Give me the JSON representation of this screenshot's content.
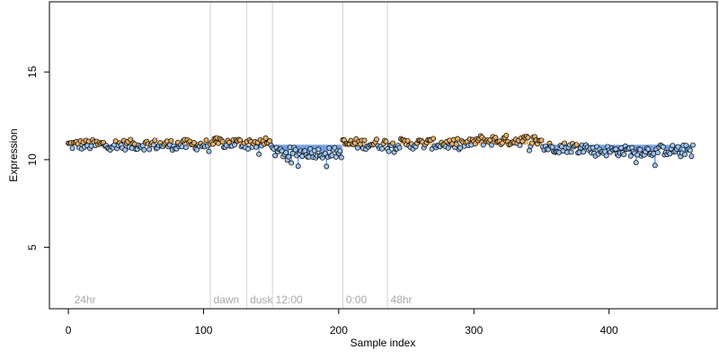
{
  "chart_data": {
    "type": "scatter",
    "title": "",
    "xlabel": "Sample index",
    "ylabel": "Expression",
    "xlim": [
      -14,
      480
    ],
    "ylim": [
      1.5,
      19
    ],
    "xticks": [
      0,
      100,
      200,
      300,
      400
    ],
    "yticks": [
      5,
      10,
      15
    ],
    "baseline": 10.85,
    "grid": false,
    "legend": "none",
    "colors": {
      "point_edge": "#000000",
      "point_above": "#e8b068",
      "point_below": "#9cc4f0",
      "bar_above": "#e8b068",
      "bar_below": "#6a98dd",
      "vline": "#d3d3d3",
      "annotation": "#a8a8a8"
    },
    "vlines": [
      105,
      132,
      151,
      203,
      236
    ],
    "annotations": [
      {
        "x": 3,
        "text": "24hr"
      },
      {
        "x": 106,
        "text": "dawn"
      },
      {
        "x": 133,
        "text": "dusk"
      },
      {
        "x": 152,
        "text": "12:00"
      },
      {
        "x": 204,
        "text": "0:00"
      },
      {
        "x": 237,
        "text": "48hr"
      }
    ],
    "segments": [
      {
        "x0": 0,
        "x1": 104,
        "level": 10.85
      },
      {
        "x0": 105,
        "x1": 151,
        "level": 10.95
      },
      {
        "x0": 152,
        "x1": 202,
        "level": 10.4
      },
      {
        "x0": 203,
        "x1": 235,
        "level": 10.9
      },
      {
        "x0": 236,
        "x1": 300,
        "level": 10.9
      },
      {
        "x0": 301,
        "x1": 350,
        "level": 11.1
      },
      {
        "x0": 351,
        "x1": 385,
        "level": 10.7
      },
      {
        "x0": 386,
        "x1": 435,
        "level": 10.5
      },
      {
        "x0": 436,
        "x1": 462,
        "level": 10.55
      }
    ],
    "noise_amplitude": 0.3,
    "n_points": 463
  }
}
